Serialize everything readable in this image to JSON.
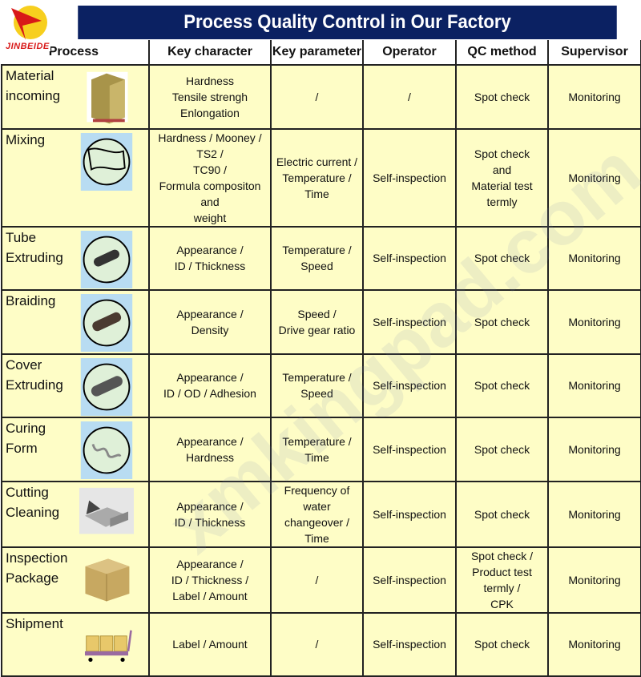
{
  "logo": {
    "text": "JINBEIDE"
  },
  "title": "Process Quality Control in Our Factory",
  "watermark": "xmkingpad.com",
  "headers": [
    "Process",
    "Key character",
    "Key parameter",
    "Operator",
    "QC method",
    "Supervisor"
  ],
  "rows": [
    {
      "process": "Material incoming",
      "image": "pallet-boxes",
      "key_character": [
        "Hardness",
        "Tensile strengh",
        "Enlongation"
      ],
      "key_parameter": [
        "/"
      ],
      "operator": [
        "/"
      ],
      "qc_method": [
        "Spot check"
      ],
      "supervisor": "Monitoring"
    },
    {
      "process": "Mixing",
      "image": "rubber-sheet",
      "key_character": [
        "Hardness / Mooney / TS2 /",
        "TC90 /",
        "Formula compositon and",
        "weight"
      ],
      "key_parameter": [
        "Electric current /",
        "Temperature /",
        "Time"
      ],
      "operator": [
        "Self-inspection"
      ],
      "qc_method": [
        "Spot check",
        "and",
        "Material test termly"
      ],
      "supervisor": "Monitoring"
    },
    {
      "process": "Tube Extruding",
      "image": "tube",
      "key_character": [
        "Appearance /",
        "ID / Thickness"
      ],
      "key_parameter": [
        "Temperature /",
        "Speed"
      ],
      "operator": [
        "Self-inspection"
      ],
      "qc_method": [
        "Spot check"
      ],
      "supervisor": "Monitoring"
    },
    {
      "process": "Braiding",
      "image": "braided-hose",
      "key_character": [
        "Appearance /",
        "Density"
      ],
      "key_parameter": [
        "Speed /",
        "Drive gear ratio"
      ],
      "operator": [
        "Self-inspection"
      ],
      "qc_method": [
        "Spot check"
      ],
      "supervisor": "Monitoring"
    },
    {
      "process": "Cover Extruding",
      "image": "covered-hose",
      "key_character": [
        "Appearance /",
        "ID / OD / Adhesion"
      ],
      "key_parameter": [
        "Temperature /",
        "Speed"
      ],
      "operator": [
        "Self-inspection"
      ],
      "qc_method": [
        "Spot check"
      ],
      "supervisor": "Monitoring"
    },
    {
      "process": "Curing Form",
      "image": "formed-hose",
      "key_character": [
        "Appearance /",
        "Hardness"
      ],
      "key_parameter": [
        "Temperature /",
        "Time"
      ],
      "operator": [
        "Self-inspection"
      ],
      "qc_method": [
        "Spot check"
      ],
      "supervisor": "Monitoring"
    },
    {
      "process": "Cutting Cleaning",
      "image": "cutter",
      "key_character": [
        "Appearance /",
        "ID / Thickness"
      ],
      "key_parameter": [
        "Frequency of water",
        "changeover /",
        "Time"
      ],
      "operator": [
        "Self-inspection"
      ],
      "qc_method": [
        "Spot check"
      ],
      "supervisor": "Monitoring"
    },
    {
      "process": "Inspection Package",
      "image": "carton-box",
      "key_character": [
        "Appearance /",
        "ID / Thickness /",
        "Label / Amount"
      ],
      "key_parameter": [
        "/"
      ],
      "operator": [
        "Self-inspection"
      ],
      "qc_method": [
        "Spot check /",
        "Product test termly /",
        "CPK"
      ],
      "supervisor": "Monitoring"
    },
    {
      "process": "Shipment",
      "image": "cart-boxes",
      "key_character": [
        "Label / Amount"
      ],
      "key_parameter": [
        "/"
      ],
      "operator": [
        "Self-inspection"
      ],
      "qc_method": [
        "Spot check"
      ],
      "supervisor": "Monitoring"
    }
  ],
  "colors": {
    "title_bg": "#0b2162",
    "cell_bg": "#fefdc6",
    "logo_red": "#d81818",
    "logo_yellow": "#f7cf1e"
  }
}
